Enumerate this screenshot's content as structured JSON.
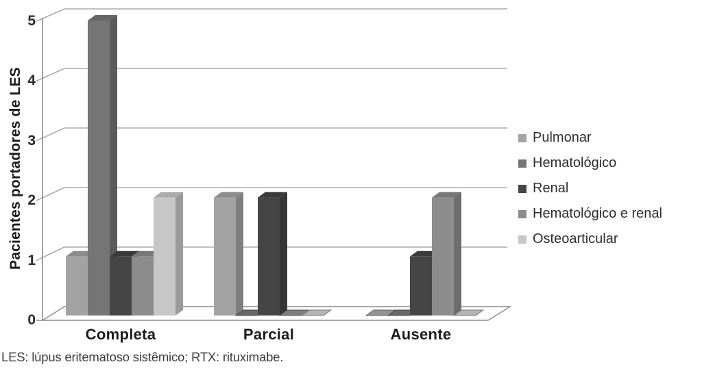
{
  "figure": {
    "ylabel": "Pacientes portadores de LES",
    "caption": "LES: lúpus eritematoso sistêmico; RTX: rituximabe."
  },
  "chart_data": {
    "type": "bar",
    "subtype": "3d-grouped-column",
    "title": "",
    "xlabel": "",
    "ylabel": "Pacientes portadores de LES",
    "categories": [
      "Completa",
      "Parcial",
      "Ausente"
    ],
    "series": [
      {
        "name": "Pulmonar",
        "color": "#a3a3a3",
        "values": [
          1,
          2,
          0
        ]
      },
      {
        "name": "Hematológico",
        "color": "#757575",
        "values": [
          5,
          0,
          0
        ]
      },
      {
        "name": "Renal",
        "color": "#454545",
        "values": [
          1,
          2,
          1
        ]
      },
      {
        "name": "Hematológico e renal",
        "color": "#8c8c8c",
        "values": [
          1,
          0,
          2
        ]
      },
      {
        "name": "Osteoarticular",
        "color": "#c7c7c7",
        "values": [
          2,
          0,
          0
        ]
      }
    ],
    "yticks": [
      0,
      1,
      2,
      3,
      4,
      5
    ],
    "ylim": [
      0,
      5
    ],
    "grid": true,
    "legend_position": "right",
    "caption": "LES: lúpus eritematoso sistêmico; RTX: rituximabe.",
    "colors": {
      "gridline": "#9a9a9a",
      "axis": "#8a8a8a",
      "text": "#1c1c1c"
    }
  }
}
